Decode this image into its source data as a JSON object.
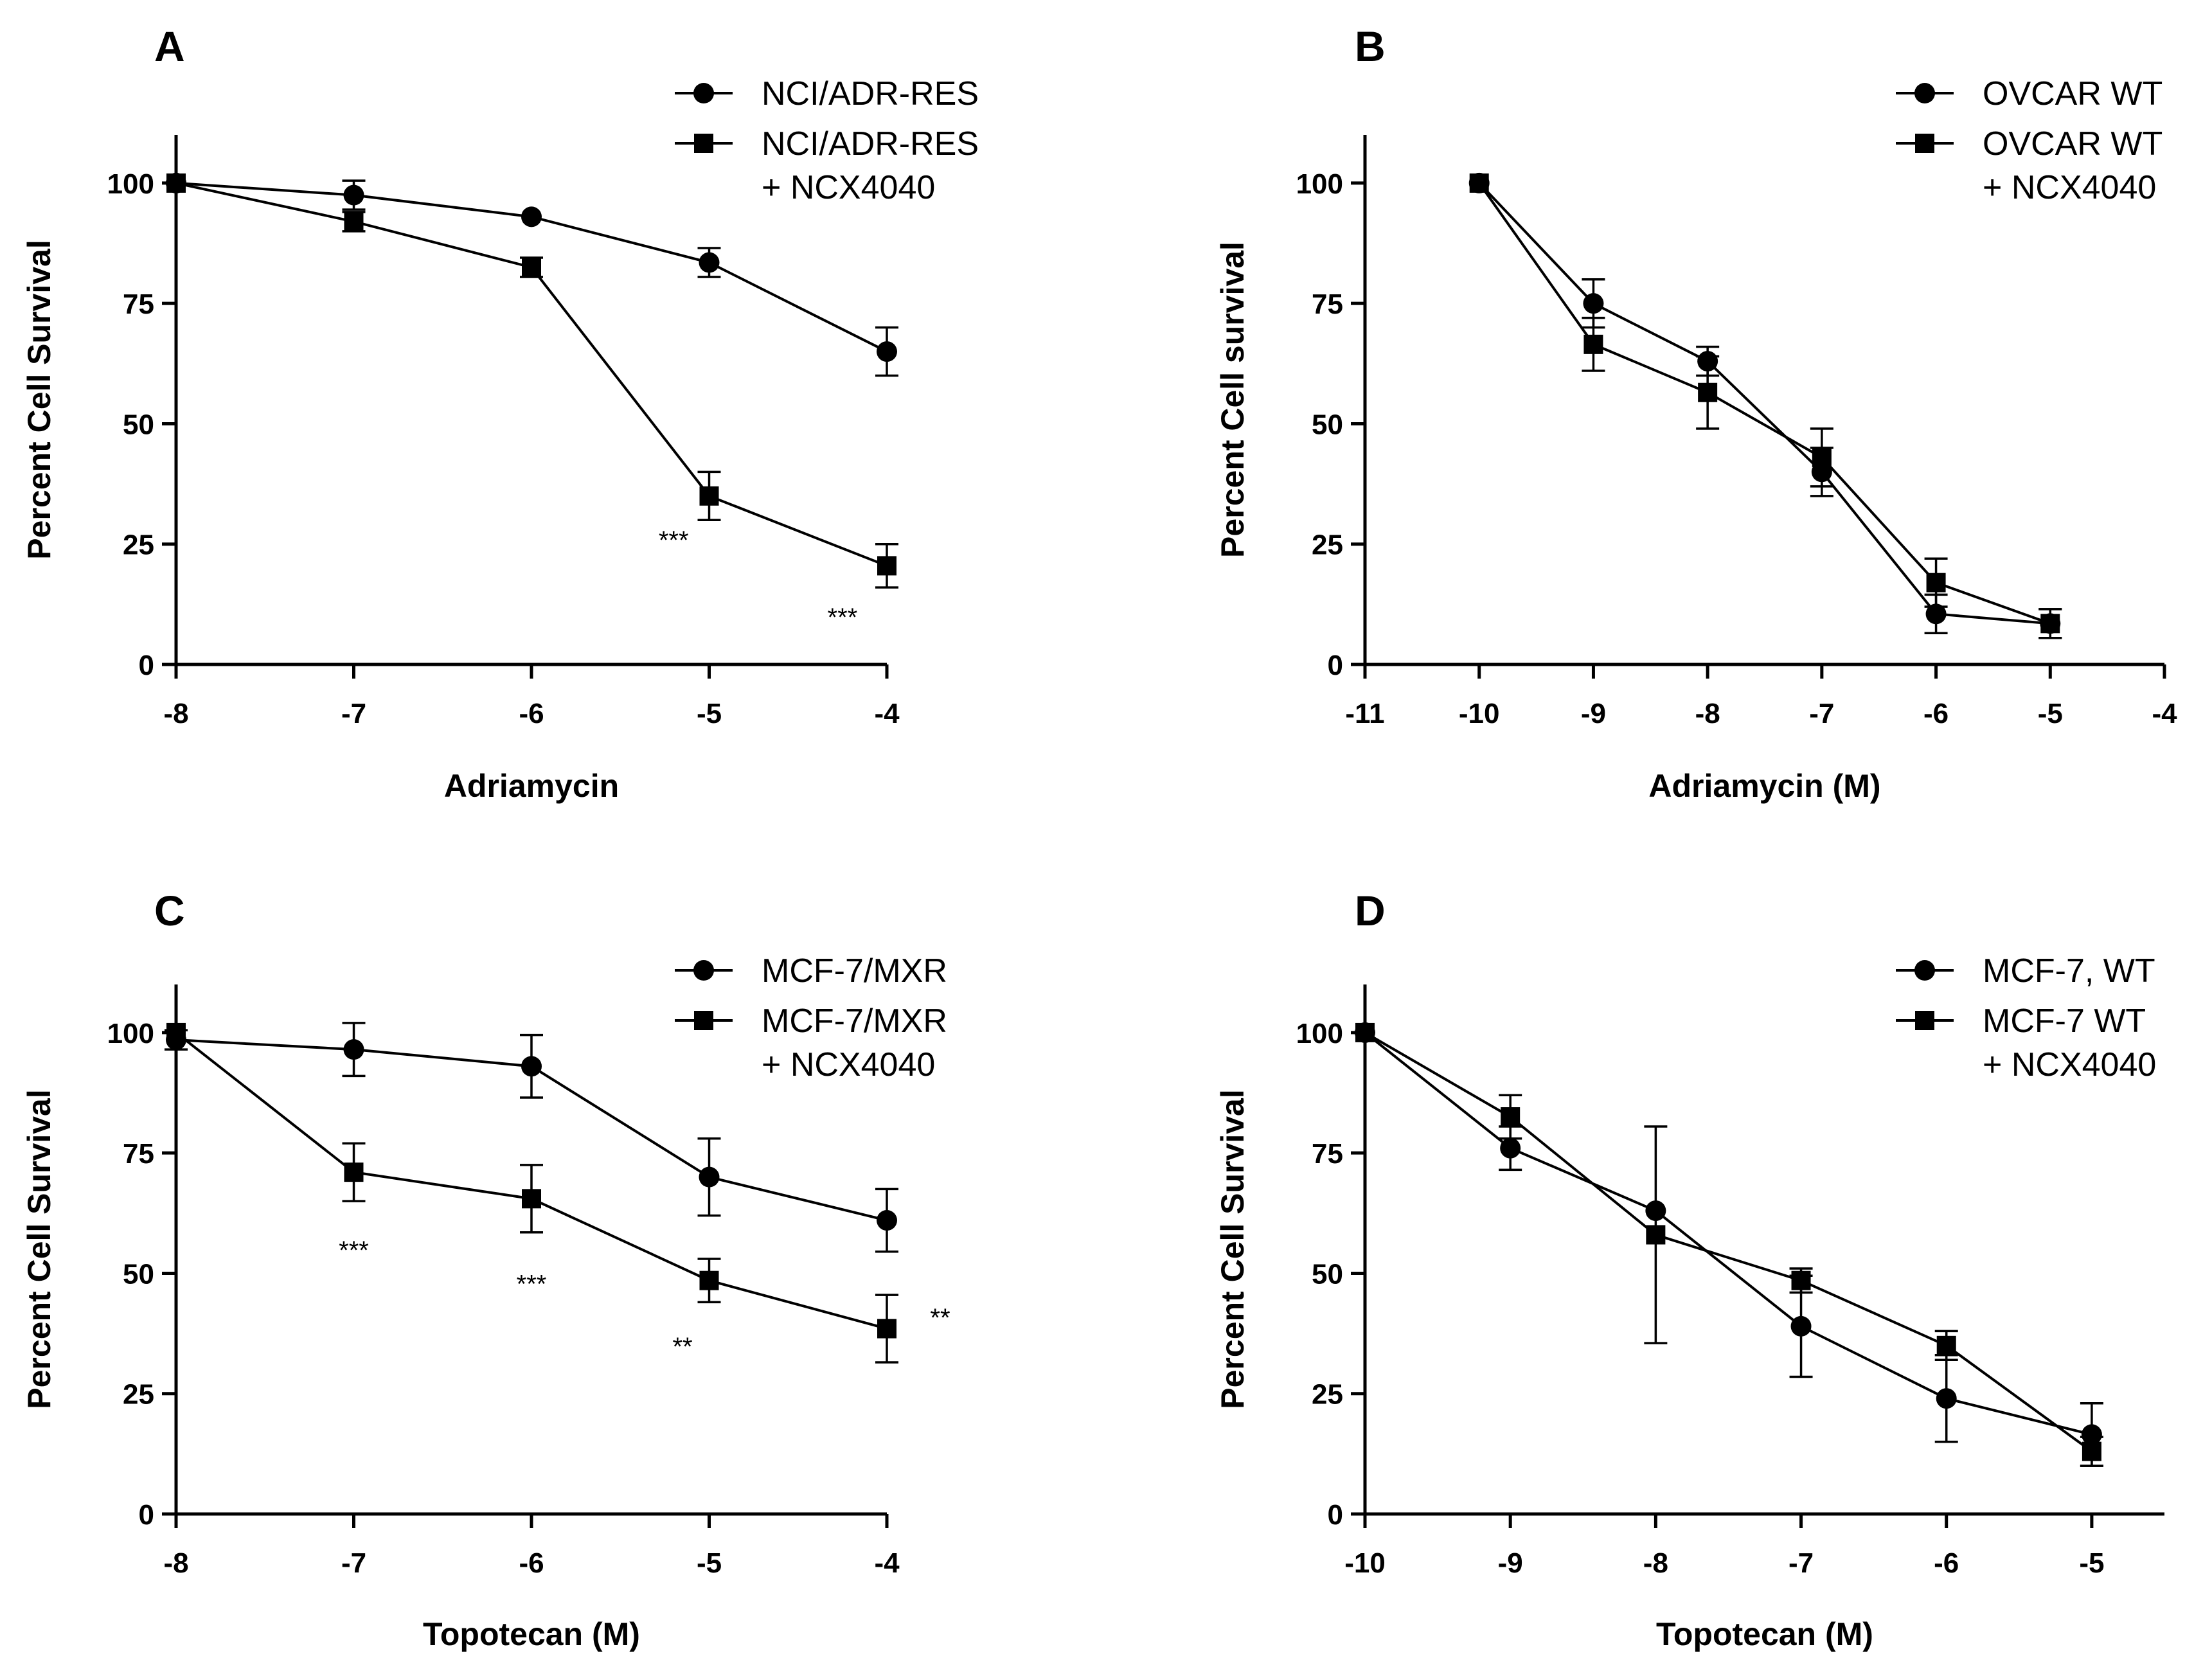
{
  "chart_data": [
    {
      "type": "line",
      "panel": "A",
      "xlabel": "Adriamycin",
      "ylabel": "Percent Cell Survival",
      "xlim": [
        -8,
        -4
      ],
      "ylim": [
        0,
        110
      ],
      "xticks": [
        -8,
        -7,
        -6,
        -5,
        -4
      ],
      "yticks": [
        0,
        25,
        50,
        75,
        100
      ],
      "legend_position": "top-right",
      "series": [
        {
          "name": "NCI/ADR-RES",
          "legend_lines": [
            "NCI/ADR-RES"
          ],
          "marker": "circle",
          "x": [
            -8,
            -7,
            -6,
            -5,
            -4
          ],
          "y": [
            100,
            97.5,
            93,
            83.5,
            65
          ],
          "err": [
            0,
            3,
            0,
            3,
            5
          ]
        },
        {
          "name": "NCI/ADR-RES + NCX4040",
          "legend_lines": [
            "NCI/ADR-RES",
            "+ NCX4040"
          ],
          "marker": "square",
          "x": [
            -8,
            -7,
            -6,
            -5,
            -4
          ],
          "y": [
            100,
            92,
            82.5,
            35,
            20.5
          ],
          "err": [
            0,
            2,
            2,
            5,
            4.5
          ]
        }
      ],
      "annotations": [
        {
          "text": "***",
          "x": -5.2,
          "y": 24
        },
        {
          "text": "***",
          "x": -4.25,
          "y": 8
        }
      ]
    },
    {
      "type": "line",
      "panel": "B",
      "xlabel": "Adriamycin (M)",
      "ylabel": "Percent Cell survival",
      "xlim": [
        -11,
        -4
      ],
      "ylim": [
        0,
        110
      ],
      "xticks": [
        -11,
        -10,
        -9,
        -8,
        -7,
        -6,
        -5,
        -4
      ],
      "yticks": [
        0,
        25,
        50,
        75,
        100
      ],
      "legend_position": "top-right",
      "series": [
        {
          "name": "OVCAR WT",
          "legend_lines": [
            "OVCAR WT"
          ],
          "marker": "circle",
          "x": [
            -10,
            -9,
            -8,
            -7,
            -6,
            -5
          ],
          "y": [
            100,
            75,
            63,
            40,
            10.5,
            8.5
          ],
          "err": [
            0,
            5,
            3,
            5,
            4,
            3
          ]
        },
        {
          "name": "OVCAR WT + NCX4040",
          "legend_lines": [
            "OVCAR WT",
            "+ NCX4040"
          ],
          "marker": "square",
          "x": [
            -10,
            -9,
            -8,
            -7,
            -6,
            -5
          ],
          "y": [
            100,
            66.5,
            56.5,
            43,
            17,
            8.5
          ],
          "err": [
            0,
            5.5,
            7.5,
            6,
            5,
            3
          ]
        }
      ],
      "annotations": []
    },
    {
      "type": "line",
      "panel": "C",
      "xlabel": "Topotecan (M)",
      "ylabel": "Percent Cell Survival",
      "xlim": [
        -8,
        -4
      ],
      "ylim": [
        0,
        110
      ],
      "xticks": [
        -8,
        -7,
        -6,
        -5,
        -4
      ],
      "yticks": [
        0,
        25,
        50,
        75,
        100
      ],
      "legend_position": "top-right",
      "series": [
        {
          "name": "MCF-7/MXR",
          "legend_lines": [
            "MCF-7/MXR"
          ],
          "marker": "circle",
          "x": [
            -8,
            -7,
            -6,
            -5,
            -4
          ],
          "y": [
            98.5,
            96.5,
            93,
            70,
            61
          ],
          "err": [
            2,
            5.5,
            6.5,
            8,
            6.5
          ]
        },
        {
          "name": "MCF-7/MXR + NCX4040",
          "legend_lines": [
            "MCF-7/MXR",
            "+ NCX4040"
          ],
          "marker": "square",
          "x": [
            -8,
            -7,
            -6,
            -5,
            -4
          ],
          "y": [
            100,
            71,
            65.5,
            48.5,
            38.5
          ],
          "err": [
            0,
            6,
            7,
            4.5,
            7
          ]
        }
      ],
      "annotations": [
        {
          "text": "***",
          "x": -7,
          "y": 53
        },
        {
          "text": "***",
          "x": -6,
          "y": 46
        },
        {
          "text": "**",
          "x": -5.15,
          "y": 33
        },
        {
          "text": "**",
          "x": -3.7,
          "y": 39
        }
      ]
    },
    {
      "type": "line",
      "panel": "D",
      "xlabel": "Topotecan (M)",
      "ylabel": "Percent Cell Survival",
      "xlim": [
        -10,
        -4.5
      ],
      "ylim": [
        0,
        110
      ],
      "xticks": [
        -10,
        -9,
        -8,
        -7,
        -6,
        -5
      ],
      "yticks": [
        0,
        25,
        50,
        75,
        100
      ],
      "legend_position": "top-right",
      "series": [
        {
          "name": "MCF-7, WT",
          "legend_lines": [
            "MCF-7, WT"
          ],
          "marker": "circle",
          "x": [
            -10,
            -9,
            -8,
            -7,
            -6,
            -5
          ],
          "y": [
            100,
            76,
            63,
            39,
            24,
            16.5
          ],
          "err": [
            0,
            4.5,
            0,
            10.5,
            9,
            6.5
          ]
        },
        {
          "name": "MCF-7 WT + NCX4040",
          "legend_lines": [
            "MCF-7 WT",
            "+ NCX4040"
          ],
          "marker": "square",
          "x": [
            -10,
            -9,
            -8,
            -7,
            -6,
            -5
          ],
          "y": [
            100,
            82.5,
            58,
            48.5,
            35,
            13
          ],
          "err": [
            0,
            4.5,
            22.5,
            2.5,
            3,
            3
          ]
        }
      ],
      "annotations": []
    }
  ]
}
